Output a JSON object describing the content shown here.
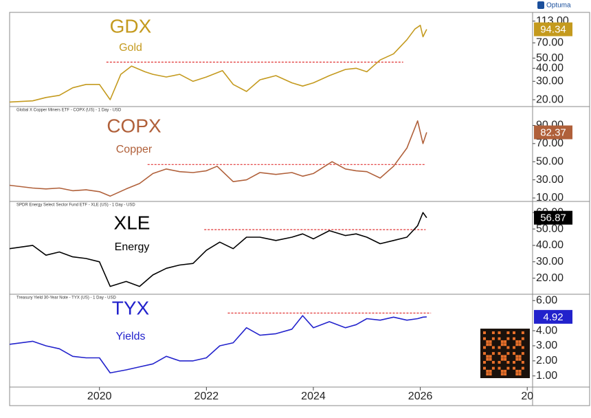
{
  "brand": "Optuma",
  "chart_data": [
    {
      "type": "line",
      "title": "GDX",
      "subtitle": "Gold",
      "color": "#c49a1e",
      "log": true,
      "x": [
        2018.32,
        2018.75,
        2019.0,
        2019.25,
        2019.5,
        2019.75,
        2020.0,
        2020.2,
        2020.4,
        2020.6,
        2020.85,
        2021.0,
        2021.25,
        2021.5,
        2021.75,
        2022.0,
        2022.3,
        2022.5,
        2022.75,
        2023.0,
        2023.3,
        2023.6,
        2023.8,
        2024.0,
        2024.3,
        2024.6,
        2024.8,
        2025.0,
        2025.25,
        2025.5,
        2025.75,
        2025.9,
        2026.0,
        2026.05,
        2026.12
      ],
      "values": [
        19,
        19.5,
        21,
        22,
        26,
        28,
        28,
        20,
        35,
        42,
        37,
        35,
        33,
        35,
        30,
        33,
        38,
        28,
        24,
        31,
        34,
        29,
        27,
        29,
        34,
        39,
        40,
        37,
        48,
        55,
        75,
        95,
        103,
        80,
        94.34
      ],
      "xlim": [
        2018.32,
        2028.1
      ],
      "ylim": [
        17.2,
        137
      ],
      "yticks": [
        {
          "value": 20,
          "label": "20.00"
        },
        {
          "value": 30,
          "label": "30.00"
        },
        {
          "value": 40,
          "label": "40.00"
        },
        {
          "value": 50,
          "label": "50.00"
        },
        {
          "value": 70,
          "label": "70.00"
        },
        {
          "value": 113,
          "label": "113.00"
        }
      ],
      "levels": [
        {
          "value": 45.8,
          "x": [
            2020.13,
            2025.68
          ],
          "color": "#e03030"
        }
      ]
    },
    {
      "type": "line",
      "header": "Global X Copper Miners ETF - COPX (US) - 1 Day - USD",
      "title": "COPX",
      "subtitle": "Copper",
      "color": "#b0603a",
      "x": [
        2018.32,
        2018.75,
        2019.0,
        2019.25,
        2019.5,
        2019.75,
        2020.0,
        2020.2,
        2020.5,
        2020.75,
        2021.0,
        2021.25,
        2021.5,
        2021.75,
        2022.0,
        2022.2,
        2022.5,
        2022.75,
        2023.0,
        2023.3,
        2023.6,
        2023.8,
        2024.0,
        2024.35,
        2024.6,
        2024.8,
        2025.0,
        2025.25,
        2025.5,
        2025.75,
        2025.95,
        2026.05,
        2026.12
      ],
      "values": [
        24,
        21,
        20,
        21,
        18,
        19,
        17,
        12,
        20,
        26,
        37,
        42,
        39,
        38,
        40,
        45,
        28,
        30,
        38,
        36,
        38,
        34,
        37,
        50,
        42,
        40,
        39,
        32,
        45,
        65,
        95,
        70,
        82.37
      ],
      "xlim": [
        2018.32,
        2028.1
      ],
      "ylim": [
        6.2,
        110.8
      ],
      "yticks": [
        {
          "value": 10,
          "label": "10.00"
        },
        {
          "value": 30,
          "label": "30.00"
        },
        {
          "value": 50,
          "label": "50.00"
        },
        {
          "value": 70,
          "label": "70.00"
        },
        {
          "value": 90,
          "label": "90.00"
        }
      ],
      "levels": [
        {
          "value": 46.9,
          "x": [
            2020.9,
            2026.08
          ],
          "color": "#e03030"
        }
      ]
    },
    {
      "type": "line",
      "header": "SPDR Energy Select Sector Fund ETF - XLE (US) - 1 Day - USD",
      "title": "XLE",
      "subtitle": "Energy",
      "color": "#000000",
      "x": [
        2018.32,
        2018.75,
        2019.0,
        2019.25,
        2019.5,
        2019.75,
        2020.0,
        2020.2,
        2020.5,
        2020.75,
        2021.0,
        2021.25,
        2021.5,
        2021.75,
        2022.0,
        2022.25,
        2022.5,
        2022.75,
        2023.0,
        2023.3,
        2023.6,
        2023.8,
        2024.0,
        2024.3,
        2024.6,
        2024.8,
        2025.0,
        2025.25,
        2025.5,
        2025.75,
        2025.95,
        2026.05,
        2026.12
      ],
      "values": [
        38,
        40,
        34,
        36,
        33,
        32,
        30,
        15,
        18,
        15,
        22,
        26,
        28,
        29,
        37,
        42,
        38,
        45,
        45,
        43,
        45,
        47,
        44,
        49,
        46,
        47,
        45,
        41,
        43,
        45,
        52,
        60,
        56.87
      ],
      "xlim": [
        2018.32,
        2028.1
      ],
      "ylim": [
        10.2,
        66.8
      ],
      "yticks": [
        {
          "value": 20,
          "label": "20.00"
        },
        {
          "value": 30,
          "label": "30.00"
        },
        {
          "value": 40,
          "label": "40.00"
        },
        {
          "value": 50,
          "label": "50.00"
        },
        {
          "value": 60,
          "label": "60.00"
        }
      ],
      "levels": [
        {
          "value": 49.6,
          "x": [
            2021.96,
            2026.1
          ],
          "color": "#e03030"
        }
      ]
    },
    {
      "type": "line",
      "header": "Treasury Yield 30-Year Note - TYX (US) - 1 Day - USD",
      "title": "TYX",
      "subtitle": "Yields",
      "color": "#2222cc",
      "x": [
        2018.32,
        2018.75,
        2019.0,
        2019.25,
        2019.5,
        2019.75,
        2020.0,
        2020.2,
        2020.5,
        2020.75,
        2021.0,
        2021.25,
        2021.5,
        2021.75,
        2022.0,
        2022.25,
        2022.5,
        2022.75,
        2023.0,
        2023.3,
        2023.6,
        2023.8,
        2024.0,
        2024.3,
        2024.6,
        2024.8,
        2025.0,
        2025.25,
        2025.5,
        2025.75,
        2025.95,
        2026.05,
        2026.12
      ],
      "values": [
        3.1,
        3.3,
        3.0,
        2.8,
        2.3,
        2.2,
        2.2,
        1.2,
        1.4,
        1.6,
        1.8,
        2.3,
        2.0,
        2.0,
        2.2,
        3.0,
        3.2,
        4.2,
        3.7,
        3.8,
        4.1,
        5.0,
        4.2,
        4.6,
        4.2,
        4.4,
        4.8,
        4.7,
        4.9,
        4.7,
        4.8,
        4.9,
        4.92
      ],
      "xlim": [
        2018.32,
        2028.1
      ],
      "ylim": [
        0.26,
        6.42
      ],
      "yticks": [
        {
          "value": 1,
          "label": "1.00"
        },
        {
          "value": 2,
          "label": "2.00"
        },
        {
          "value": 3,
          "label": "3.00"
        },
        {
          "value": 4,
          "label": "4.00"
        },
        {
          "value": 6,
          "label": "6.00"
        }
      ],
      "levels": [
        {
          "value": 5.17,
          "x": [
            2022.4,
            2026.2
          ],
          "color": "#e03030"
        }
      ],
      "xticks": [
        2020,
        2022,
        2024,
        2026,
        {
          "value": 2028,
          "label": "20"
        }
      ]
    }
  ]
}
